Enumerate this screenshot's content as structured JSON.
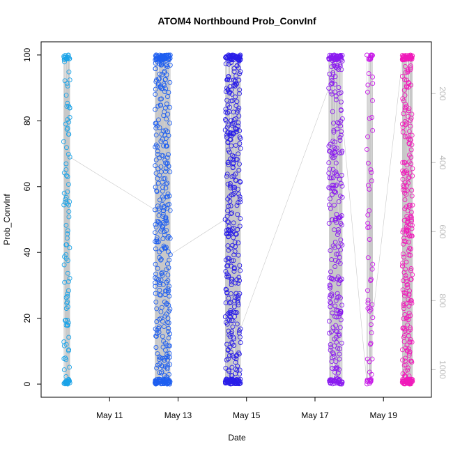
{
  "chart_data": {
    "type": "scatter",
    "title": "ATOM4 Northbound Prob_ConvInf",
    "xlabel": "Date",
    "ylabel": "Prob_ConvInf",
    "y_ticks": [
      0,
      20,
      40,
      60,
      80,
      100
    ],
    "x_ticks": [
      "May 11",
      "May 13",
      "May 15",
      "May 17",
      "May 19"
    ],
    "x_tick_days": [
      11,
      13,
      15,
      17,
      19
    ],
    "xlim_days": [
      9.0,
      20.4
    ],
    "ylim": [
      -4,
      104
    ],
    "right_axis": {
      "ticks": [
        200,
        400,
        600,
        800,
        1000
      ],
      "lim": [
        50,
        1080
      ],
      "color": "#bdbdbd"
    },
    "clusters": [
      {
        "day": 9.75,
        "spread": 0.18,
        "n": 130,
        "color": "#1aa3e8"
      },
      {
        "day": 12.55,
        "spread": 0.45,
        "n": 420,
        "color": "#1f5ff0"
      },
      {
        "day": 14.6,
        "spread": 0.45,
        "n": 420,
        "color": "#2a1ee8"
      },
      {
        "day": 17.6,
        "spread": 0.4,
        "n": 300,
        "color": "#8a1af0"
      },
      {
        "day": 18.6,
        "spread": 0.18,
        "n": 70,
        "color": "#c81ae8"
      },
      {
        "day": 19.7,
        "spread": 0.3,
        "n": 320,
        "color": "#f01aba"
      }
    ],
    "grid": false,
    "legend": "none"
  }
}
